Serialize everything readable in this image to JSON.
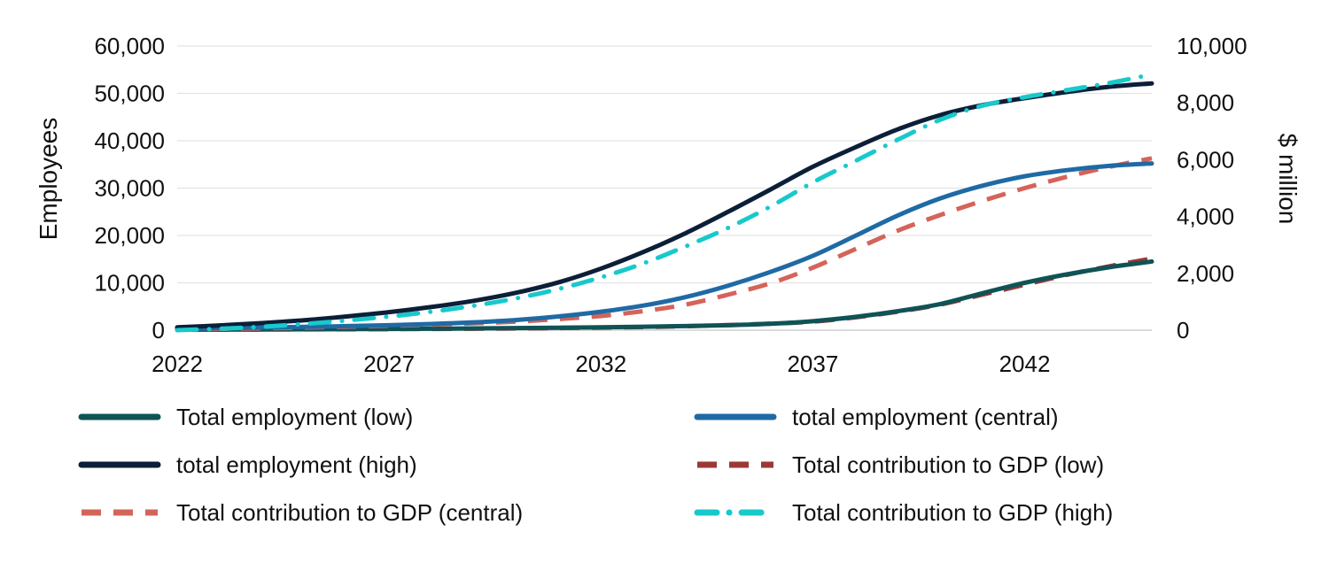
{
  "chart_data": {
    "type": "line",
    "xlim": [
      2022,
      2045
    ],
    "x_ticks": [
      "2022",
      "2027",
      "2032",
      "2037",
      "2042"
    ],
    "y_left": {
      "label": "Employees",
      "lim": [
        0,
        60000
      ],
      "ticks": [
        "0",
        "10,000",
        "20,000",
        "30,000",
        "40,000",
        "50,000",
        "60,000"
      ]
    },
    "y_right": {
      "label": "$ million",
      "lim": [
        0,
        10000
      ],
      "ticks": [
        "0",
        "2,000",
        "4,000",
        "6,000",
        "8,000",
        "10,000"
      ]
    },
    "grid": "horizontal",
    "legend_position": "bottom",
    "x": [
      2022,
      2023,
      2024,
      2025,
      2026,
      2027,
      2028,
      2029,
      2030,
      2031,
      2032,
      2033,
      2034,
      2035,
      2036,
      2037,
      2038,
      2039,
      2040,
      2041,
      2042,
      2043,
      2044,
      2045
    ],
    "series": [
      {
        "name": "Total employment (low)",
        "axis": "left",
        "color": "#0f5356",
        "dash": "solid",
        "values": [
          100,
          120,
          150,
          180,
          220,
          260,
          310,
          370,
          440,
          520,
          610,
          720,
          870,
          1050,
          1350,
          1900,
          2800,
          4000,
          5500,
          7800,
          10000,
          11800,
          13300,
          14500
        ]
      },
      {
        "name": "total employment (central)",
        "axis": "left",
        "color": "#1f6aa5",
        "dash": "solid",
        "values": [
          300,
          420,
          550,
          700,
          860,
          1050,
          1300,
          1650,
          2150,
          2900,
          3900,
          5200,
          7000,
          9400,
          12300,
          15700,
          19900,
          24200,
          27800,
          30500,
          32500,
          33800,
          34700,
          35200
        ]
      },
      {
        "name": "total employment (high)",
        "axis": "left",
        "color": "#0c1f38",
        "dash": "solid",
        "values": [
          600,
          1000,
          1500,
          2100,
          2900,
          3800,
          4900,
          6200,
          7900,
          10100,
          13000,
          16500,
          20500,
          25000,
          29700,
          34500,
          38600,
          42400,
          45400,
          47500,
          49000,
          50300,
          51400,
          52100
        ]
      },
      {
        "name": "Total contribution to GDP (low)",
        "axis": "right",
        "color": "#9b3a35",
        "dash": "long",
        "values": [
          20,
          22,
          25,
          28,
          32,
          37,
          43,
          52,
          62,
          75,
          90,
          110,
          140,
          180,
          230,
          300,
          450,
          650,
          900,
          1250,
          1600,
          1950,
          2250,
          2520
        ]
      },
      {
        "name": "Total contribution to GDP (central)",
        "axis": "right",
        "color": "#d4645a",
        "dash": "long",
        "values": [
          30,
          45,
          65,
          90,
          120,
          155,
          195,
          240,
          300,
          390,
          500,
          670,
          900,
          1250,
          1650,
          2200,
          2850,
          3500,
          4050,
          4550,
          5000,
          5400,
          5750,
          6050
        ]
      },
      {
        "name": "Total contribution to GDP (high)",
        "axis": "right",
        "color": "#18c9cc",
        "dash": "dashdot",
        "values": [
          0,
          50,
          120,
          220,
          340,
          480,
          650,
          860,
          1120,
          1450,
          1860,
          2350,
          2950,
          3600,
          4350,
          5200,
          5950,
          6700,
          7400,
          7900,
          8200,
          8450,
          8700,
          9000
        ]
      }
    ]
  }
}
